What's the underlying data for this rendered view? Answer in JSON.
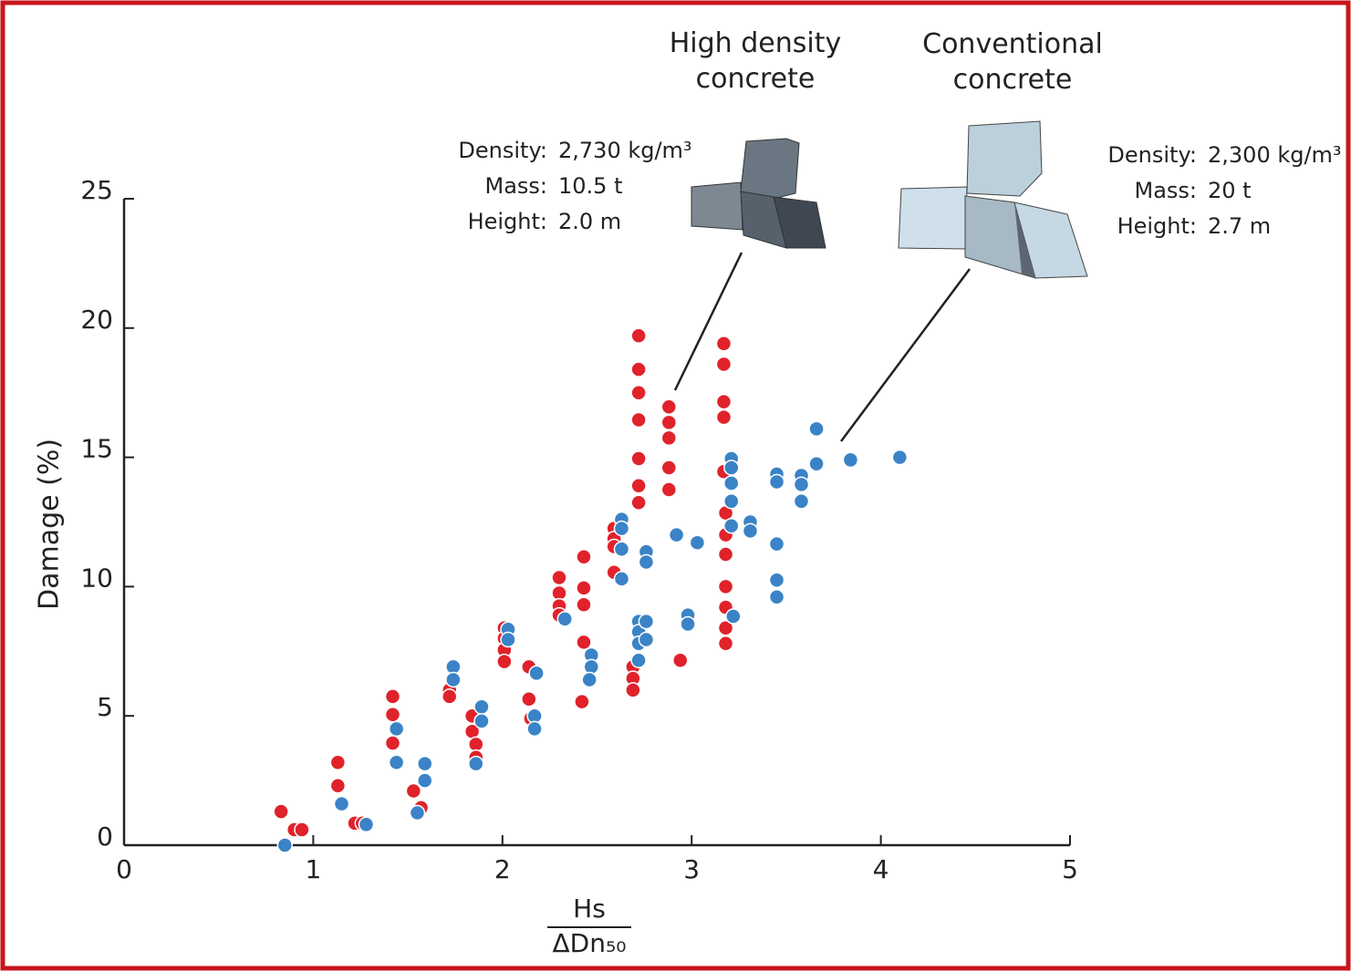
{
  "chart_data": {
    "type": "scatter",
    "ylabel": "Damage (%)",
    "xlabel": {
      "numerator": "Hs",
      "denominator": "ΔDn₅₀"
    },
    "xlim": [
      0,
      5
    ],
    "xticks": [
      0,
      1,
      2,
      3,
      4,
      5
    ],
    "ylim": [
      0,
      25
    ],
    "yticks": [
      0,
      5,
      10,
      15,
      20,
      25
    ],
    "series": [
      {
        "name": "High density concrete",
        "color": "#e0222b",
        "x": [
          0.83,
          0.9,
          0.94,
          1.13,
          1.13,
          1.22,
          1.26,
          1.42,
          1.42,
          1.42,
          1.53,
          1.57,
          1.72,
          1.72,
          1.84,
          1.84,
          1.86,
          1.86,
          2.01,
          2.01,
          2.01,
          2.01,
          2.14,
          2.14,
          2.15,
          2.3,
          2.3,
          2.3,
          2.3,
          2.43,
          2.43,
          2.43,
          2.43,
          2.42,
          2.59,
          2.59,
          2.59,
          2.59,
          2.72,
          2.72,
          2.72,
          2.72,
          2.72,
          2.72,
          2.72,
          2.69,
          2.69,
          2.69,
          2.88,
          2.88,
          2.88,
          2.88,
          2.88,
          2.94,
          3.17,
          3.17,
          3.17,
          3.17,
          3.17,
          3.18,
          3.18,
          3.18,
          3.18,
          3.18,
          3.18,
          3.18
        ],
        "values": [
          1.3,
          0.6,
          0.6,
          3.2,
          2.3,
          0.85,
          0.85,
          5.75,
          5.05,
          3.95,
          2.1,
          1.45,
          6.0,
          5.75,
          5.0,
          4.4,
          3.9,
          3.4,
          8.4,
          8.0,
          7.55,
          7.1,
          6.9,
          5.65,
          4.9,
          10.35,
          9.75,
          9.25,
          8.9,
          11.15,
          9.95,
          9.3,
          7.85,
          5.55,
          12.25,
          11.85,
          11.55,
          10.55,
          19.7,
          18.4,
          17.5,
          16.45,
          14.95,
          13.9,
          13.25,
          6.9,
          6.45,
          6.0,
          16.95,
          16.35,
          15.75,
          14.6,
          13.75,
          7.15,
          19.4,
          18.6,
          17.15,
          16.55,
          14.45,
          12.85,
          12.0,
          11.25,
          10.0,
          9.2,
          8.4,
          7.8
        ]
      },
      {
        "name": "Conventional concrete",
        "color": "#3a83c6",
        "x": [
          0.85,
          1.15,
          1.28,
          1.44,
          1.44,
          1.55,
          1.59,
          1.59,
          1.74,
          1.74,
          1.89,
          1.89,
          1.86,
          2.03,
          2.03,
          2.18,
          2.17,
          2.17,
          2.33,
          2.47,
          2.47,
          2.46,
          2.63,
          2.63,
          2.63,
          2.63,
          2.72,
          2.72,
          2.72,
          2.72,
          2.76,
          2.76,
          2.76,
          2.76,
          2.92,
          3.03,
          2.98,
          2.98,
          3.21,
          3.21,
          3.21,
          3.21,
          3.21,
          3.22,
          3.31,
          3.31,
          3.45,
          3.45,
          3.45,
          3.45,
          3.45,
          3.58,
          3.58,
          3.58,
          3.66,
          3.66,
          3.84,
          4.1
        ],
        "values": [
          0,
          1.6,
          0.8,
          4.5,
          3.2,
          1.25,
          3.15,
          2.5,
          6.9,
          6.4,
          5.35,
          4.8,
          3.15,
          8.35,
          7.95,
          6.65,
          5.0,
          4.5,
          8.75,
          7.35,
          6.9,
          6.4,
          12.6,
          12.25,
          11.45,
          10.3,
          8.65,
          8.25,
          7.8,
          7.15,
          11.35,
          10.95,
          8.65,
          7.95,
          12.0,
          11.7,
          8.9,
          8.55,
          14.95,
          14.6,
          14.0,
          13.3,
          12.35,
          8.85,
          12.5,
          12.15,
          14.35,
          14.05,
          11.65,
          10.25,
          9.6,
          14.3,
          13.95,
          13.3,
          16.1,
          14.75,
          14.9,
          15.0
        ]
      }
    ],
    "annotations": [
      {
        "specs": [
          [
            "Density:",
            "2,730 kg/m³"
          ],
          [
            "Mass:",
            "10.5 t"
          ],
          [
            "Height:",
            "2.0 m"
          ]
        ]
      },
      {
        "specs": [
          [
            "Density:",
            "2,300 kg/m³"
          ],
          [
            "Mass:",
            "20 t"
          ],
          [
            "Height:",
            "2.7 m"
          ]
        ]
      }
    ]
  }
}
